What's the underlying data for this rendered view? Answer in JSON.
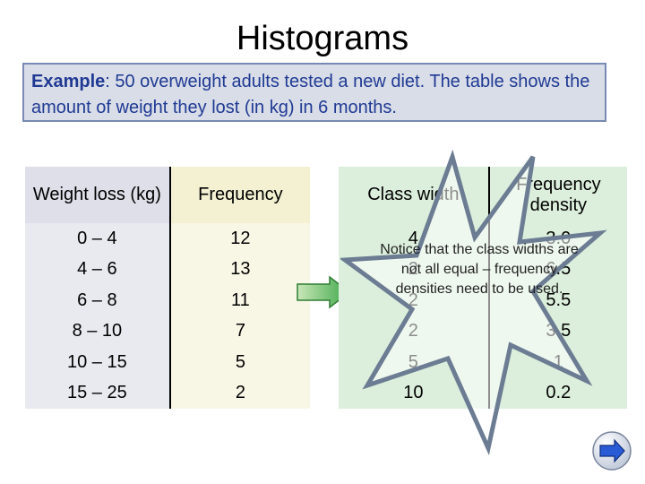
{
  "title": "Histograms",
  "example": {
    "label": "Example",
    "text": ": 50 overweight adults tested a new diet. The table shows the amount of weight they lost (in kg) in 6 months."
  },
  "left_table": {
    "headers": [
      "Weight loss (kg)",
      "Frequency"
    ],
    "rows": [
      [
        "0 – 4",
        "12"
      ],
      [
        "4 – 6",
        "13"
      ],
      [
        "6 – 8",
        "11"
      ],
      [
        "8 – 10",
        "7"
      ],
      [
        "10 – 15",
        "5"
      ],
      [
        "15 – 25",
        "2"
      ]
    ]
  },
  "right_table": {
    "headers": [
      "Class width",
      "Frequency density"
    ],
    "rows": [
      [
        "4",
        "3.0"
      ],
      [
        "2",
        "6.5"
      ],
      [
        "2",
        "5.5"
      ],
      [
        "2",
        "3.5"
      ],
      [
        "5",
        "1"
      ],
      [
        "10",
        "0.2"
      ]
    ]
  },
  "callout": {
    "text": "Notice that the class widths are not all equal – frequency densities need to be used."
  },
  "colors": {
    "example_text": "#1f3a93",
    "example_border": "#7789b4",
    "arrow_green": "#4caf50",
    "star_border": "#6b7c93",
    "nav_blue": "#2a5bd7"
  },
  "icons": {
    "arrow": "right-arrow-icon",
    "callout": "star-callout-icon",
    "nav": "next-slide-icon"
  }
}
